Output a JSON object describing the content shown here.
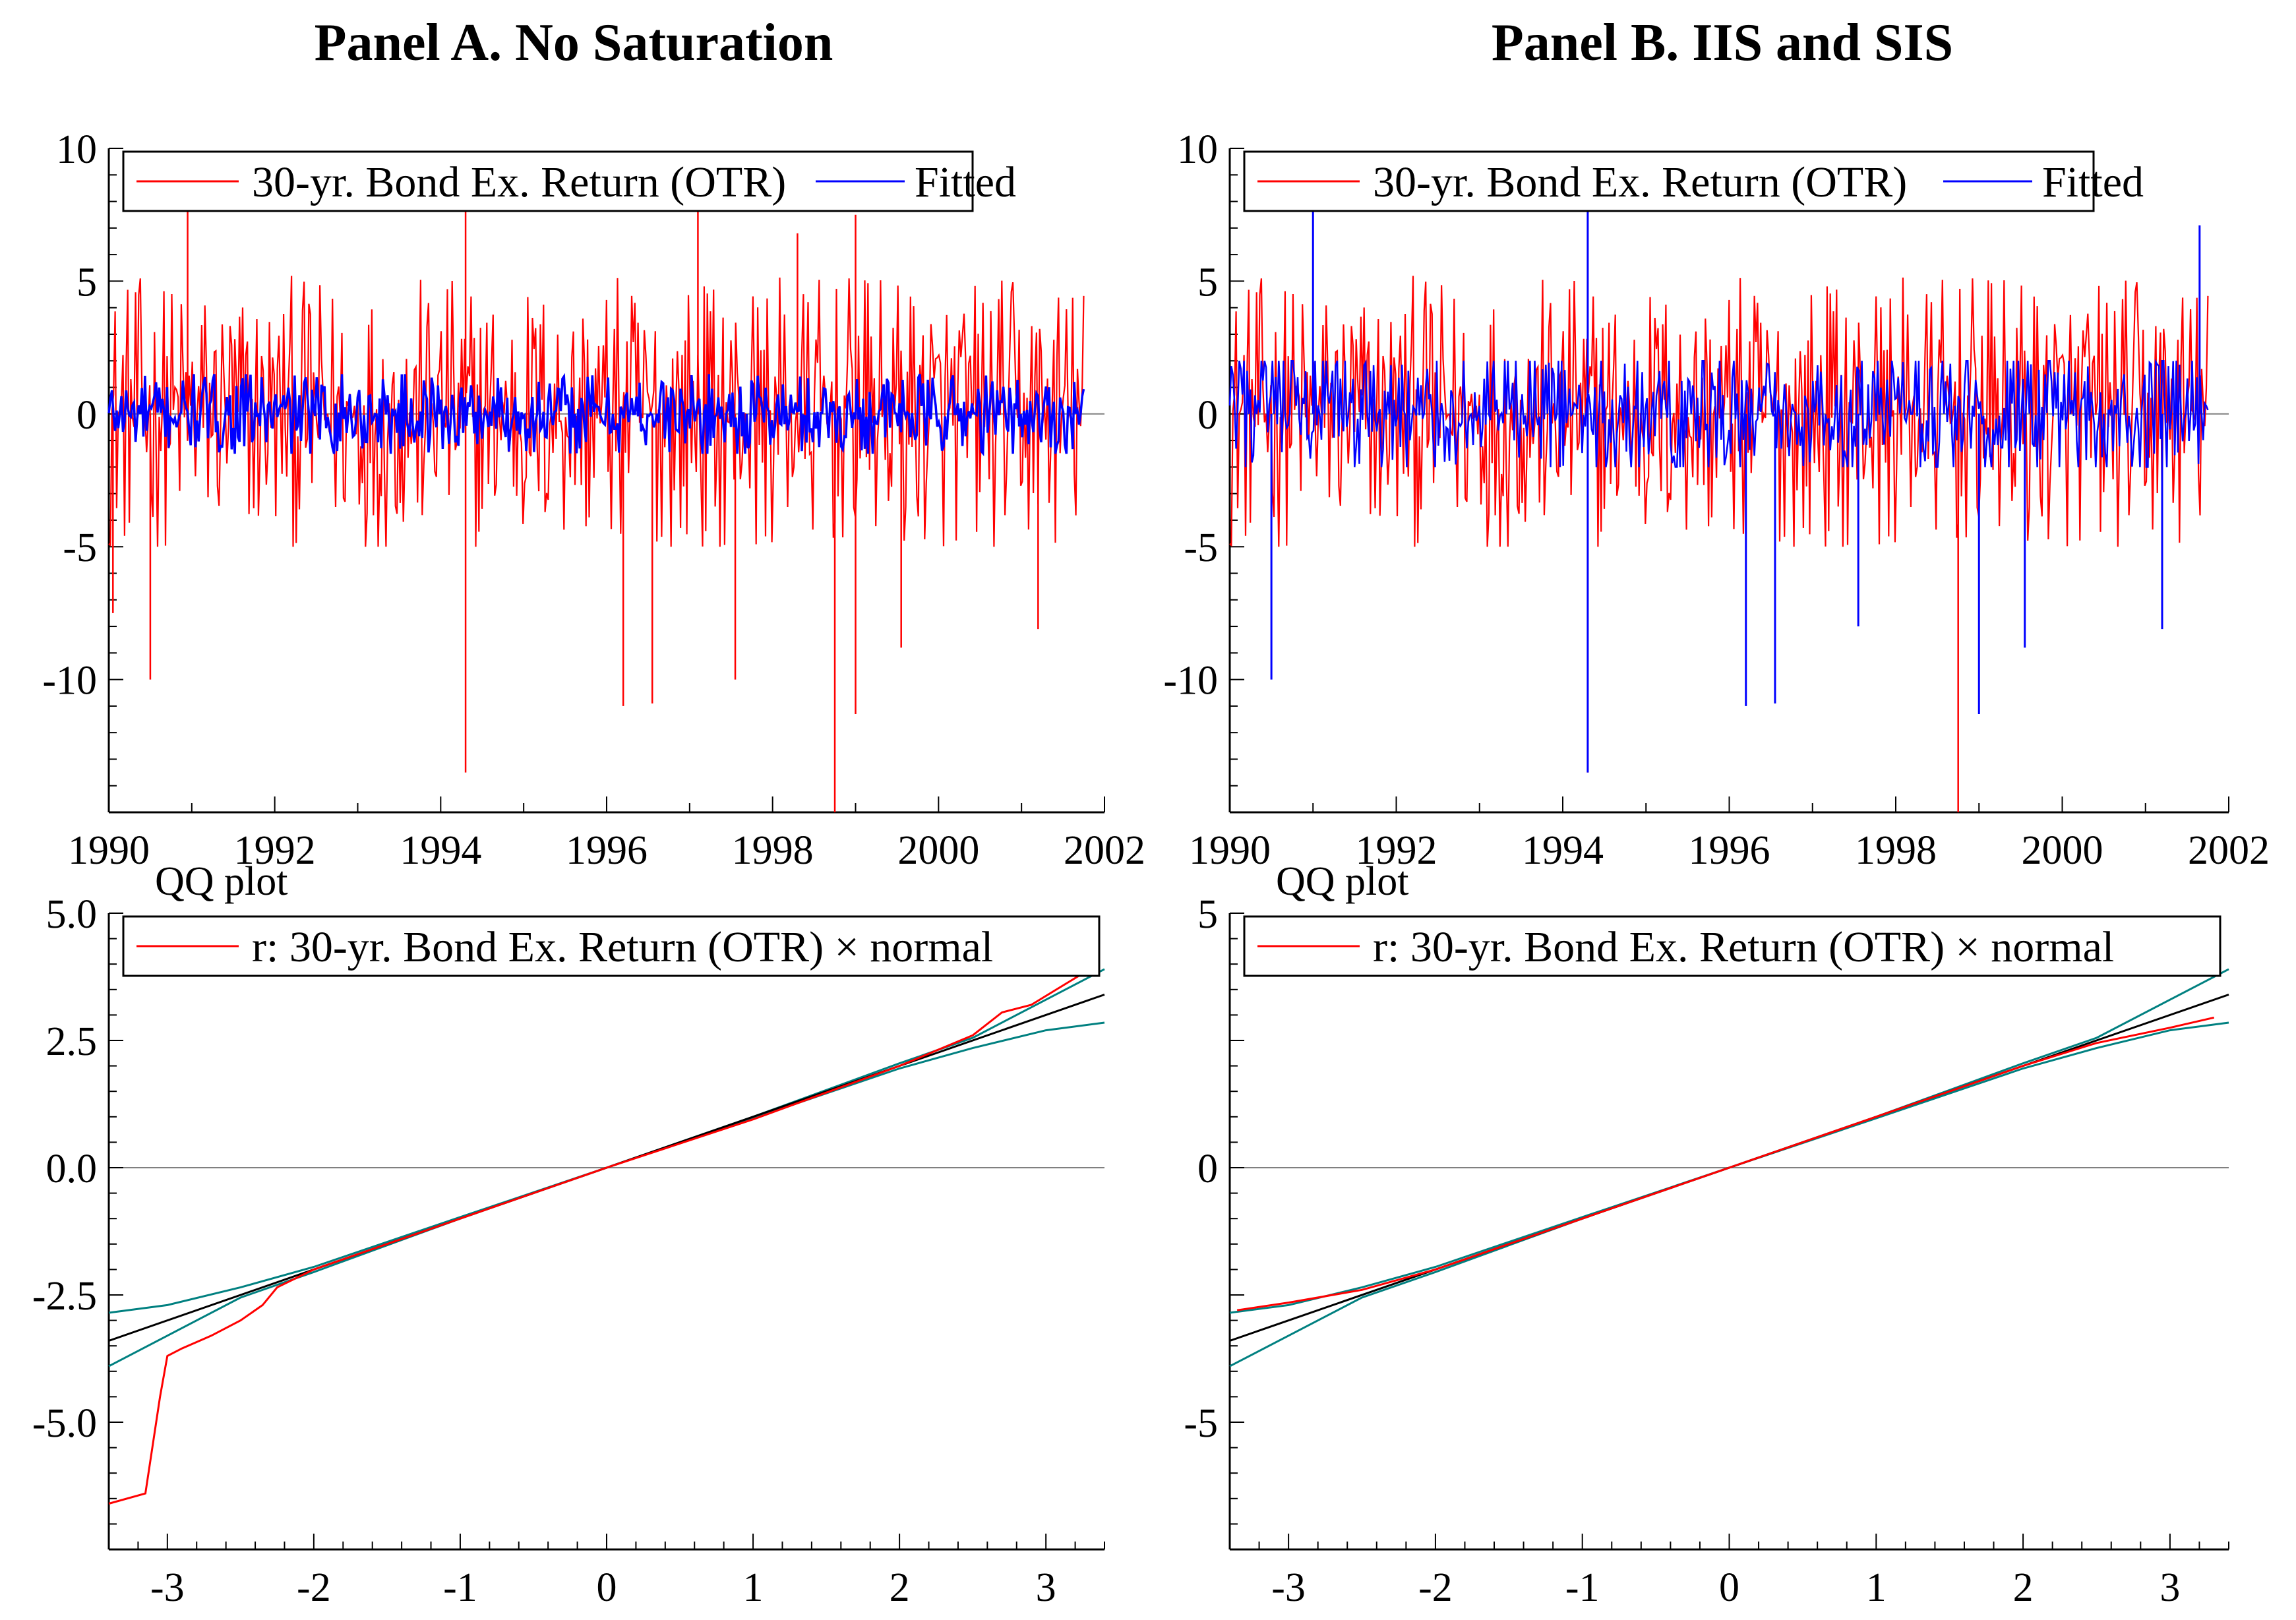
{
  "panels": [
    {
      "title": "Panel A. No Saturation"
    },
    {
      "title": "Panel B. IIS and SIS"
    }
  ],
  "colors": {
    "actual": "#ff0000",
    "fitted": "#0000ff",
    "ref": "#000000",
    "band": "#008080",
    "zero": "#808080"
  },
  "chart_data": [
    {
      "type": "line",
      "panel": "A",
      "series": [
        {
          "name": "30-yr. Bond Ex. Return (OTR)",
          "color": "#ff0000",
          "summary": {
            "dense_range": [
              -5,
              6
            ],
            "spikes": [
              [
                1990.95,
                8.6
              ],
              [
                1994.3,
                8.8
              ],
              [
                1994.3,
                -13.5
              ],
              [
                1998.75,
                -15.4
              ],
              [
                1999.0,
                -11.3
              ],
              [
                1990.5,
                -10.0
              ],
              [
                1996.2,
                -11.0
              ],
              [
                1996.55,
                -10.9
              ],
              [
                1997.55,
                -10.0
              ],
              [
                1999.55,
                -8.8
              ],
              [
                2001.2,
                -8.1
              ],
              [
                1999.0,
                7.5
              ],
              [
                1997.1,
                7.7
              ],
              [
                1990.05,
                -7.5
              ],
              [
                1998.3,
                6.8
              ]
            ]
          }
        },
        {
          "name": "Fitted",
          "color": "#0000ff",
          "summary": {
            "dense_range": [
              -1.5,
              1.5
            ]
          }
        }
      ],
      "legend": [
        "30-yr. Bond Ex. Return (OTR)",
        "Fitted"
      ],
      "xlim": [
        1990,
        2002
      ],
      "ylim": [
        -15,
        10
      ],
      "xticks": [
        "1990",
        "1992",
        "1994",
        "1996",
        "1998",
        "2000",
        "2002"
      ],
      "yticks": [
        "10",
        "5",
        "0",
        "-5",
        "-10"
      ]
    },
    {
      "type": "line",
      "panel": "B",
      "series": [
        {
          "name": "30-yr. Bond Ex. Return (OTR)",
          "color": "#ff0000",
          "summary": {
            "dense_range": [
              -5,
              6
            ],
            "spikes": [
              [
                1998.75,
                -15.4
              ],
              [
                1994.3,
                8.8
              ],
              [
                1994.3,
                -13.5
              ]
            ]
          }
        },
        {
          "name": "Fitted",
          "color": "#0000ff",
          "summary": {
            "dense_range": [
              -2,
              2
            ],
            "spikes": [
              [
                1991.0,
                8.6
              ],
              [
                1994.3,
                8.8
              ],
              [
                1994.3,
                -13.5
              ],
              [
                1990.5,
                -10.0
              ],
              [
                1996.2,
                -11.0
              ],
              [
                1996.55,
                -10.9
              ],
              [
                1997.55,
                -8.0
              ],
              [
                1999.55,
                -8.8
              ],
              [
                2001.2,
                -8.1
              ],
              [
                2001.65,
                7.1
              ],
              [
                1999.0,
                -11.3
              ]
            ]
          }
        }
      ],
      "legend": [
        "30-yr. Bond Ex. Return (OTR)",
        "Fitted"
      ],
      "xlim": [
        1990,
        2002
      ],
      "ylim": [
        -15,
        10
      ],
      "xticks": [
        "1990",
        "1992",
        "1994",
        "1996",
        "1998",
        "2000",
        "2002"
      ],
      "yticks": [
        "10",
        "5",
        "0",
        "-5",
        "-10"
      ]
    },
    {
      "type": "line",
      "panel": "A",
      "title": "QQ plot",
      "legend": [
        "r: 30-yr. Bond Ex. Return (OTR) × normal"
      ],
      "xlim": [
        -3.4,
        3.4
      ],
      "ylim": [
        -7.5,
        5.0
      ],
      "xticks": [
        "-3",
        "-2",
        "-1",
        "0",
        "1",
        "2",
        "3"
      ],
      "yticks": [
        "5.0",
        "2.5",
        "0.0",
        "-2.5",
        "-5.0"
      ],
      "series": [
        {
          "name": "r: 30-yr. Bond Ex. Return (OTR) × normal",
          "color": "#ff0000",
          "x": [
            -3.4,
            -3.15,
            -3.05,
            -3.0,
            -2.9,
            -2.7,
            -2.5,
            -2.35,
            -2.25,
            -2.0,
            -1.0,
            0.0,
            1.0,
            2.0,
            2.5,
            2.7,
            2.9,
            3.1,
            3.3
          ],
          "y": [
            -6.6,
            -6.4,
            -4.5,
            -3.7,
            -3.55,
            -3.3,
            -3.0,
            -2.7,
            -2.35,
            -2.0,
            -1.0,
            0.0,
            0.95,
            2.0,
            2.6,
            3.05,
            3.2,
            3.55,
            3.9
          ]
        },
        {
          "name": "reference",
          "color": "#000000",
          "x": [
            -3.4,
            3.4
          ],
          "y": [
            -3.4,
            3.4
          ]
        },
        {
          "name": "upper band",
          "color": "#008080",
          "x": [
            -3.4,
            -3.0,
            -2.5,
            -2.0,
            -1.0,
            0.0,
            1.0,
            2.0,
            2.5,
            3.0,
            3.4
          ],
          "y": [
            -2.85,
            -2.7,
            -2.35,
            -1.95,
            -0.97,
            0.0,
            1.0,
            2.05,
            2.55,
            3.3,
            3.9
          ]
        },
        {
          "name": "lower band",
          "color": "#008080",
          "x": [
            -3.4,
            -3.0,
            -2.5,
            -2.0,
            -1.0,
            0.0,
            1.0,
            2.0,
            2.5,
            3.0,
            3.4
          ],
          "y": [
            -3.9,
            -3.3,
            -2.55,
            -2.05,
            -1.0,
            0.0,
            0.97,
            1.95,
            2.35,
            2.7,
            2.85
          ]
        }
      ]
    },
    {
      "type": "line",
      "panel": "B",
      "title": "QQ plot",
      "legend": [
        "r: 30-yr. Bond Ex. Return (OTR) × normal"
      ],
      "xlim": [
        -3.4,
        3.4
      ],
      "ylim": [
        -7.5,
        5.0
      ],
      "xticks": [
        "-3",
        "-2",
        "-1",
        "0",
        "1",
        "2",
        "3"
      ],
      "yticks": [
        "5",
        "0",
        "-5"
      ],
      "series": [
        {
          "name": "r: 30-yr. Bond Ex. Return (OTR) × normal",
          "color": "#ff0000",
          "x": [
            -3.35,
            -3.0,
            -2.5,
            -2.0,
            -1.0,
            0.0,
            1.0,
            2.0,
            2.5,
            3.0,
            3.3
          ],
          "y": [
            -2.8,
            -2.65,
            -2.4,
            -2.0,
            -1.0,
            0.0,
            1.0,
            2.0,
            2.45,
            2.75,
            2.95
          ]
        },
        {
          "name": "reference",
          "color": "#000000",
          "x": [
            -3.4,
            3.4
          ],
          "y": [
            -3.4,
            3.4
          ]
        },
        {
          "name": "upper band",
          "color": "#008080",
          "x": [
            -3.4,
            -3.0,
            -2.5,
            -2.0,
            -1.0,
            0.0,
            1.0,
            2.0,
            2.5,
            3.0,
            3.4
          ],
          "y": [
            -2.85,
            -2.7,
            -2.35,
            -1.95,
            -0.97,
            0.0,
            1.0,
            2.05,
            2.55,
            3.3,
            3.9
          ]
        },
        {
          "name": "lower band",
          "color": "#008080",
          "x": [
            -3.4,
            -3.0,
            -2.5,
            -2.0,
            -1.0,
            0.0,
            1.0,
            2.0,
            2.5,
            3.0,
            3.4
          ],
          "y": [
            -3.9,
            -3.3,
            -2.55,
            -2.05,
            -1.0,
            0.0,
            0.97,
            1.95,
            2.35,
            2.7,
            2.85
          ]
        }
      ]
    }
  ]
}
